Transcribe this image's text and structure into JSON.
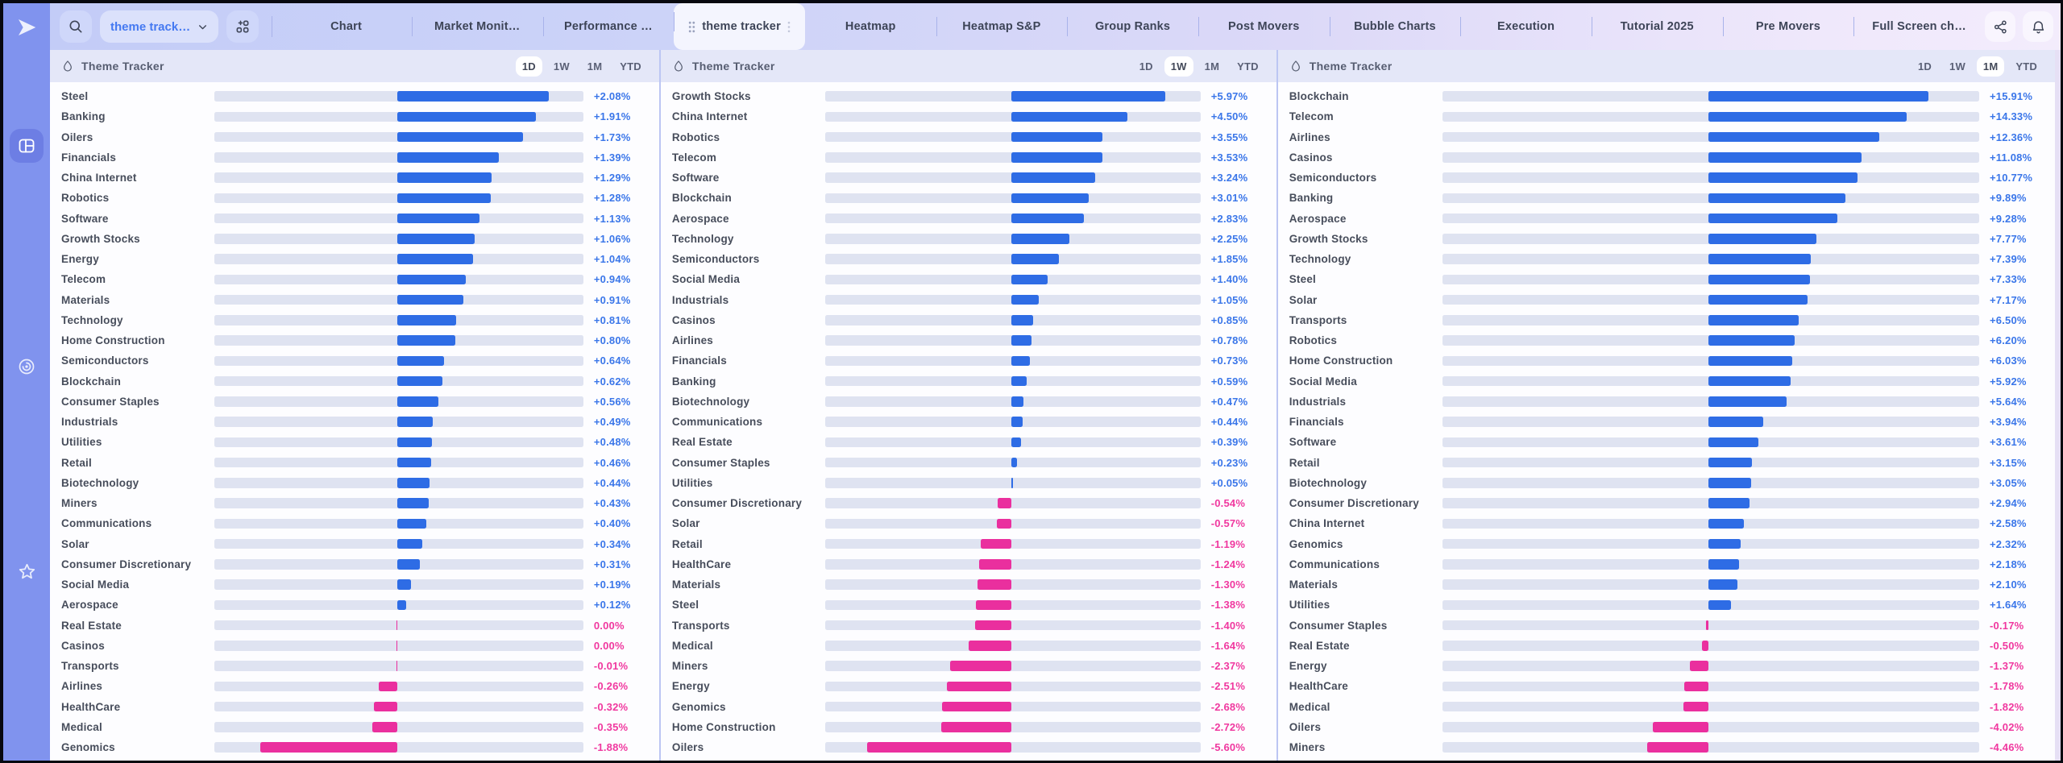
{
  "topbar": {
    "search": {
      "icon": "magnifier"
    },
    "workspace_dropdown": {
      "label": "theme track…",
      "chevron_icon": "chevron-down"
    },
    "apps_button": {
      "icon": "grid-plus"
    },
    "tabs": [
      {
        "label": "Chart",
        "active": false
      },
      {
        "label": "Market Monit…",
        "active": false
      },
      {
        "label": "Performance …",
        "active": false
      },
      {
        "label": "theme tracker",
        "active": true
      },
      {
        "label": "Heatmap",
        "active": false
      },
      {
        "label": "Heatmap S&P",
        "active": false
      },
      {
        "label": "Group Ranks",
        "active": false
      },
      {
        "label": "Post Movers",
        "active": false
      },
      {
        "label": "Bubble Charts",
        "active": false
      },
      {
        "label": "Execution",
        "active": false
      },
      {
        "label": "Tutorial 2025",
        "active": false
      },
      {
        "label": "Pre Movers",
        "active": false
      },
      {
        "label": "Full Screen ch…",
        "active": false
      }
    ],
    "actions": [
      {
        "icon": "share"
      },
      {
        "icon": "bell"
      }
    ]
  },
  "sidebar": {
    "logo_icon": "paper-plane",
    "items": [
      {
        "icon": "dashboard-grid",
        "active": true
      },
      {
        "icon": "target-spiral",
        "active": false
      },
      {
        "icon": "star",
        "active": false
      }
    ]
  },
  "colors": {
    "positive_bar": "#2e6ce5",
    "negative_bar": "#ea2f9e",
    "positive_text": "#3a76e9",
    "negative_text": "#f0389f",
    "bar_track": "#dfe3f1",
    "sidebar": "#8093ee"
  },
  "panels": [
    {
      "title": "Theme Tracker",
      "ranges": [
        "1D",
        "1W",
        "1M",
        "YTD"
      ],
      "active_range": "1D",
      "max_abs": 2.08,
      "rows": [
        {
          "label": "Steel",
          "display": "+2.08%",
          "value": 2.08
        },
        {
          "label": "Banking",
          "display": "+1.91%",
          "value": 1.91
        },
        {
          "label": "Oilers",
          "display": "+1.73%",
          "value": 1.73
        },
        {
          "label": "Financials",
          "display": "+1.39%",
          "value": 1.39
        },
        {
          "label": "China Internet",
          "display": "+1.29%",
          "value": 1.29
        },
        {
          "label": "Robotics",
          "display": "+1.28%",
          "value": 1.28
        },
        {
          "label": "Software",
          "display": "+1.13%",
          "value": 1.13
        },
        {
          "label": "Growth Stocks",
          "display": "+1.06%",
          "value": 1.06
        },
        {
          "label": "Energy",
          "display": "+1.04%",
          "value": 1.04
        },
        {
          "label": "Telecom",
          "display": "+0.94%",
          "value": 0.94
        },
        {
          "label": "Materials",
          "display": "+0.91%",
          "value": 0.91
        },
        {
          "label": "Technology",
          "display": "+0.81%",
          "value": 0.81
        },
        {
          "label": "Home Construction",
          "display": "+0.80%",
          "value": 0.8
        },
        {
          "label": "Semiconductors",
          "display": "+0.64%",
          "value": 0.64
        },
        {
          "label": "Blockchain",
          "display": "+0.62%",
          "value": 0.62
        },
        {
          "label": "Consumer Staples",
          "display": "+0.56%",
          "value": 0.56
        },
        {
          "label": "Industrials",
          "display": "+0.49%",
          "value": 0.49
        },
        {
          "label": "Utilities",
          "display": "+0.48%",
          "value": 0.48
        },
        {
          "label": "Retail",
          "display": "+0.46%",
          "value": 0.46
        },
        {
          "label": "Biotechnology",
          "display": "+0.44%",
          "value": 0.44
        },
        {
          "label": "Miners",
          "display": "+0.43%",
          "value": 0.43
        },
        {
          "label": "Communications",
          "display": "+0.40%",
          "value": 0.4
        },
        {
          "label": "Solar",
          "display": "+0.34%",
          "value": 0.34
        },
        {
          "label": "Consumer Discretionary",
          "display": "+0.31%",
          "value": 0.31
        },
        {
          "label": "Social Media",
          "display": "+0.19%",
          "value": 0.19
        },
        {
          "label": "Aerospace",
          "display": "+0.12%",
          "value": 0.12
        },
        {
          "label": "Real Estate",
          "display": "0.00%",
          "value": 0.0
        },
        {
          "label": "Casinos",
          "display": "0.00%",
          "value": 0.0
        },
        {
          "label": "Transports",
          "display": "-0.01%",
          "value": -0.01
        },
        {
          "label": "Airlines",
          "display": "-0.26%",
          "value": -0.26
        },
        {
          "label": "HealthCare",
          "display": "-0.32%",
          "value": -0.32
        },
        {
          "label": "Medical",
          "display": "-0.35%",
          "value": -0.35
        },
        {
          "label": "Genomics",
          "display": "-1.88%",
          "value": -1.88
        }
      ]
    },
    {
      "title": "Theme Tracker",
      "ranges": [
        "1D",
        "1W",
        "1M",
        "YTD"
      ],
      "active_range": "1W",
      "max_abs": 5.97,
      "rows": [
        {
          "label": "Growth Stocks",
          "display": "+5.97%",
          "value": 5.97
        },
        {
          "label": "China Internet",
          "display": "+4.50%",
          "value": 4.5
        },
        {
          "label": "Robotics",
          "display": "+3.55%",
          "value": 3.55
        },
        {
          "label": "Telecom",
          "display": "+3.53%",
          "value": 3.53
        },
        {
          "label": "Software",
          "display": "+3.24%",
          "value": 3.24
        },
        {
          "label": "Blockchain",
          "display": "+3.01%",
          "value": 3.01
        },
        {
          "label": "Aerospace",
          "display": "+2.83%",
          "value": 2.83
        },
        {
          "label": "Technology",
          "display": "+2.25%",
          "value": 2.25
        },
        {
          "label": "Semiconductors",
          "display": "+1.85%",
          "value": 1.85
        },
        {
          "label": "Social Media",
          "display": "+1.40%",
          "value": 1.4
        },
        {
          "label": "Industrials",
          "display": "+1.05%",
          "value": 1.05
        },
        {
          "label": "Casinos",
          "display": "+0.85%",
          "value": 0.85
        },
        {
          "label": "Airlines",
          "display": "+0.78%",
          "value": 0.78
        },
        {
          "label": "Financials",
          "display": "+0.73%",
          "value": 0.73
        },
        {
          "label": "Banking",
          "display": "+0.59%",
          "value": 0.59
        },
        {
          "label": "Biotechnology",
          "display": "+0.47%",
          "value": 0.47
        },
        {
          "label": "Communications",
          "display": "+0.44%",
          "value": 0.44
        },
        {
          "label": "Real Estate",
          "display": "+0.39%",
          "value": 0.39
        },
        {
          "label": "Consumer Staples",
          "display": "+0.23%",
          "value": 0.23
        },
        {
          "label": "Utilities",
          "display": "+0.05%",
          "value": 0.05
        },
        {
          "label": "Consumer Discretionary",
          "display": "-0.54%",
          "value": -0.54
        },
        {
          "label": "Solar",
          "display": "-0.57%",
          "value": -0.57
        },
        {
          "label": "Retail",
          "display": "-1.19%",
          "value": -1.19
        },
        {
          "label": "HealthCare",
          "display": "-1.24%",
          "value": -1.24
        },
        {
          "label": "Materials",
          "display": "-1.30%",
          "value": -1.3
        },
        {
          "label": "Steel",
          "display": "-1.38%",
          "value": -1.38
        },
        {
          "label": "Transports",
          "display": "-1.40%",
          "value": -1.4
        },
        {
          "label": "Medical",
          "display": "-1.64%",
          "value": -1.64
        },
        {
          "label": "Miners",
          "display": "-2.37%",
          "value": -2.37
        },
        {
          "label": "Energy",
          "display": "-2.51%",
          "value": -2.51
        },
        {
          "label": "Genomics",
          "display": "-2.68%",
          "value": -2.68
        },
        {
          "label": "Home Construction",
          "display": "-2.72%",
          "value": -2.72
        },
        {
          "label": "Oilers",
          "display": "-5.60%",
          "value": -5.6
        }
      ]
    },
    {
      "title": "Theme Tracker",
      "ranges": [
        "1D",
        "1W",
        "1M",
        "YTD"
      ],
      "active_range": "1M",
      "max_abs": 15.91,
      "rows": [
        {
          "label": "Blockchain",
          "display": "+15.91%",
          "value": 15.91
        },
        {
          "label": "Telecom",
          "display": "+14.33%",
          "value": 14.33
        },
        {
          "label": "Airlines",
          "display": "+12.36%",
          "value": 12.36
        },
        {
          "label": "Casinos",
          "display": "+11.08%",
          "value": 11.08
        },
        {
          "label": "Semiconductors",
          "display": "+10.77%",
          "value": 10.77
        },
        {
          "label": "Banking",
          "display": "+9.89%",
          "value": 9.89
        },
        {
          "label": "Aerospace",
          "display": "+9.28%",
          "value": 9.28
        },
        {
          "label": "Growth Stocks",
          "display": "+7.77%",
          "value": 7.77
        },
        {
          "label": "Technology",
          "display": "+7.39%",
          "value": 7.39
        },
        {
          "label": "Steel",
          "display": "+7.33%",
          "value": 7.33
        },
        {
          "label": "Solar",
          "display": "+7.17%",
          "value": 7.17
        },
        {
          "label": "Transports",
          "display": "+6.50%",
          "value": 6.5
        },
        {
          "label": "Robotics",
          "display": "+6.20%",
          "value": 6.2
        },
        {
          "label": "Home Construction",
          "display": "+6.03%",
          "value": 6.03
        },
        {
          "label": "Social Media",
          "display": "+5.92%",
          "value": 5.92
        },
        {
          "label": "Industrials",
          "display": "+5.64%",
          "value": 5.64
        },
        {
          "label": "Financials",
          "display": "+3.94%",
          "value": 3.94
        },
        {
          "label": "Software",
          "display": "+3.61%",
          "value": 3.61
        },
        {
          "label": "Retail",
          "display": "+3.15%",
          "value": 3.15
        },
        {
          "label": "Biotechnology",
          "display": "+3.05%",
          "value": 3.05
        },
        {
          "label": "Consumer Discretionary",
          "display": "+2.94%",
          "value": 2.94
        },
        {
          "label": "China Internet",
          "display": "+2.58%",
          "value": 2.58
        },
        {
          "label": "Genomics",
          "display": "+2.32%",
          "value": 2.32
        },
        {
          "label": "Communications",
          "display": "+2.18%",
          "value": 2.18
        },
        {
          "label": "Materials",
          "display": "+2.10%",
          "value": 2.1
        },
        {
          "label": "Utilities",
          "display": "+1.64%",
          "value": 1.64
        },
        {
          "label": "Consumer Staples",
          "display": "-0.17%",
          "value": -0.17
        },
        {
          "label": "Real Estate",
          "display": "-0.50%",
          "value": -0.5
        },
        {
          "label": "Energy",
          "display": "-1.37%",
          "value": -1.37
        },
        {
          "label": "HealthCare",
          "display": "-1.78%",
          "value": -1.78
        },
        {
          "label": "Medical",
          "display": "-1.82%",
          "value": -1.82
        },
        {
          "label": "Oilers",
          "display": "-4.02%",
          "value": -4.02
        },
        {
          "label": "Miners",
          "display": "-4.46%",
          "value": -4.46
        }
      ]
    }
  ]
}
